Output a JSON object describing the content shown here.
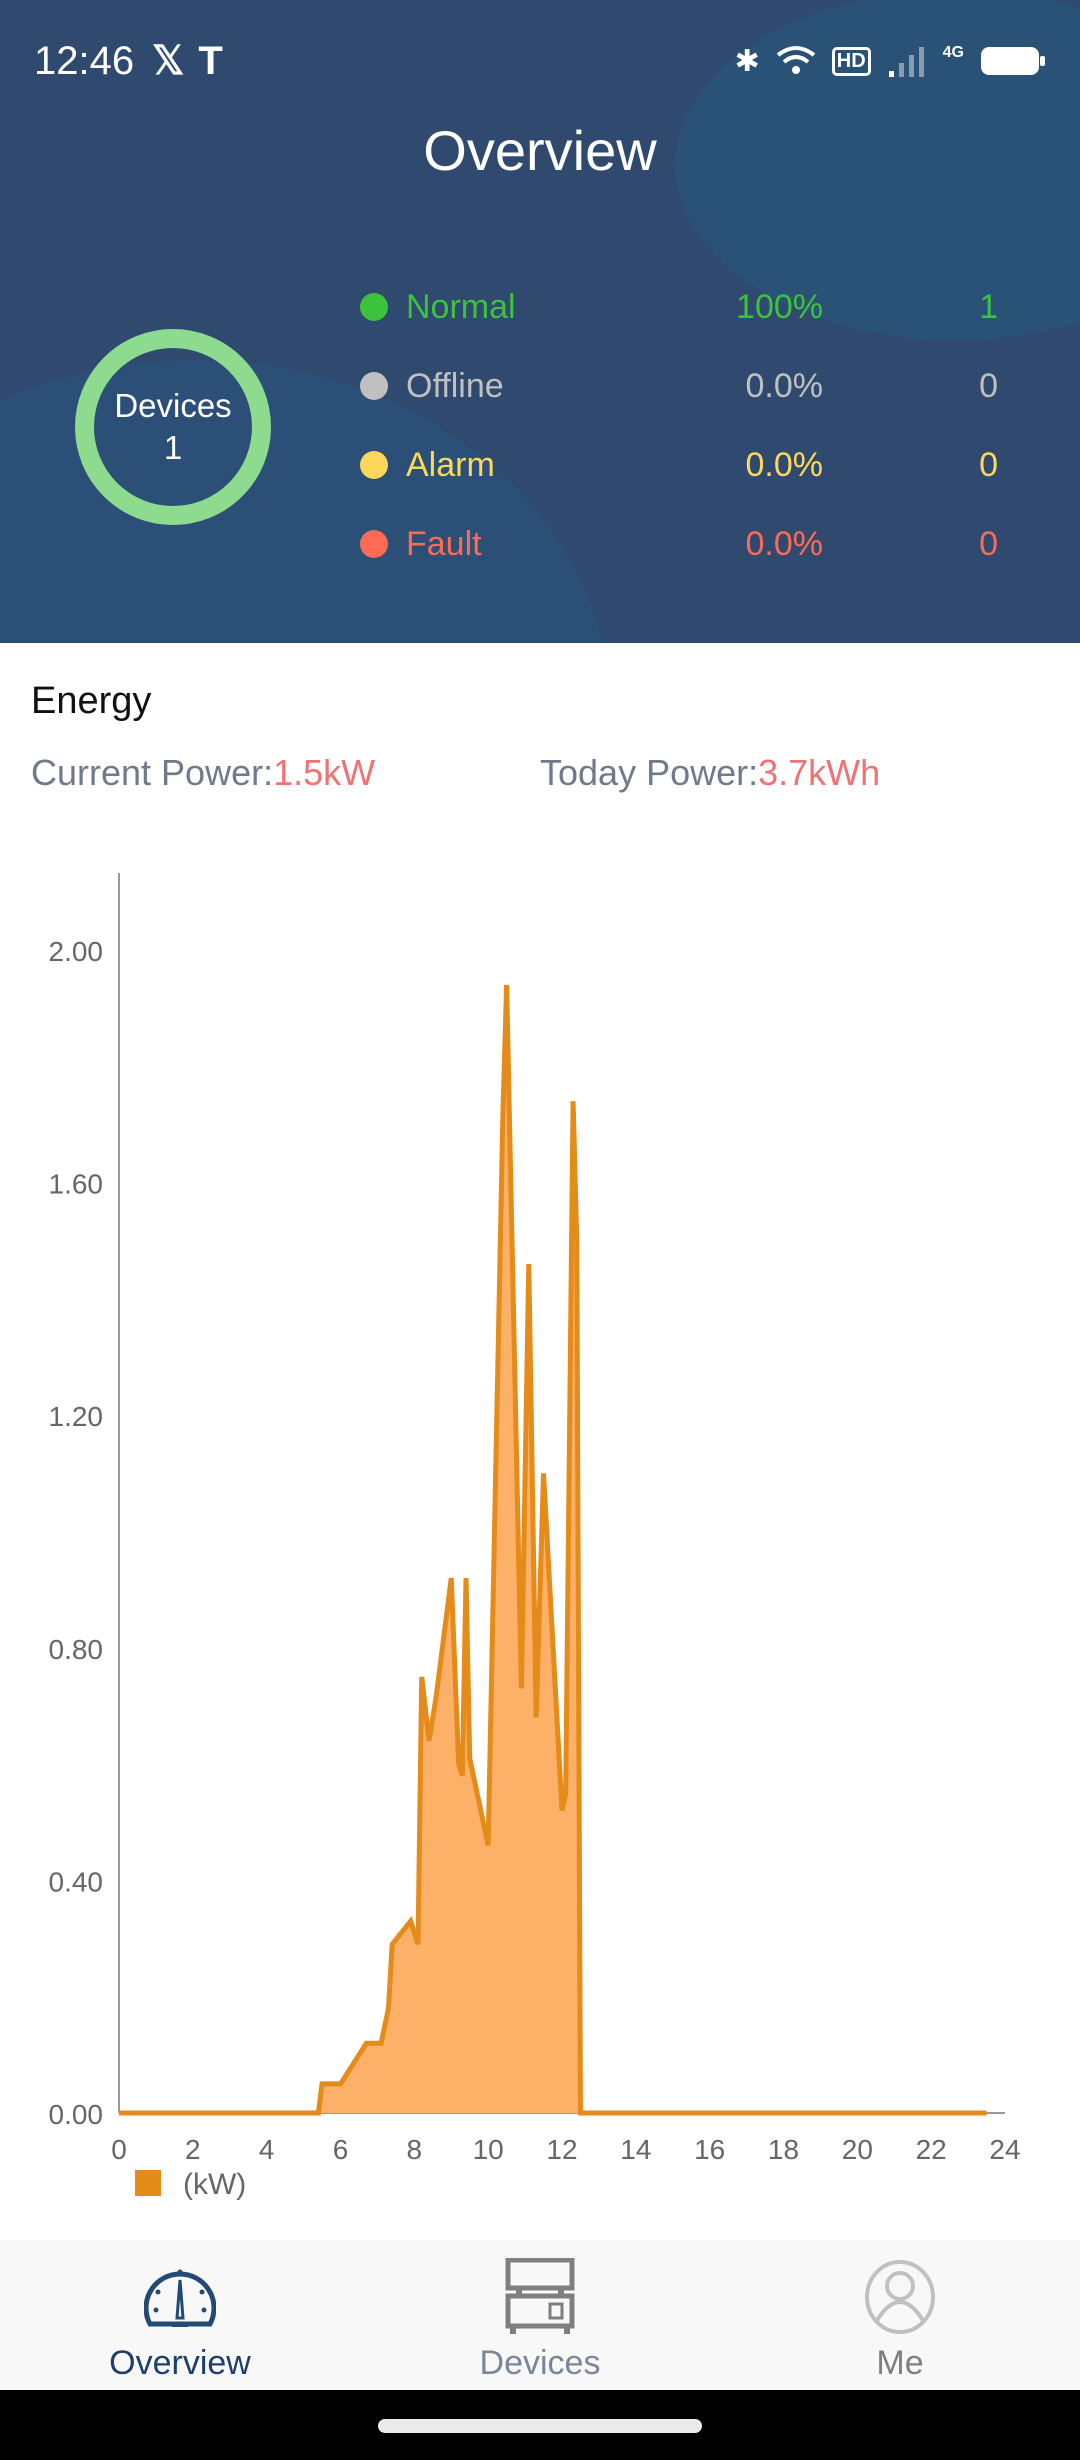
{
  "status_bar": {
    "time": "12:46",
    "network": "4G",
    "hd": "HD"
  },
  "header": {
    "title": "Overview"
  },
  "devices": {
    "label": "Devices",
    "count": "1",
    "ring_color": "#8ddb8e"
  },
  "status_rows": [
    {
      "label": "Normal",
      "percent": "100%",
      "count": "1",
      "color": "#3cc23c"
    },
    {
      "label": "Offline",
      "percent": "0.0%",
      "count": "0",
      "color": "#c0c0c0"
    },
    {
      "label": "Alarm",
      "percent": "0.0%",
      "count": "0",
      "color": "#ffd75a"
    },
    {
      "label": "Fault",
      "percent": "0.0%",
      "count": "0",
      "color": "#fd6a55"
    }
  ],
  "energy": {
    "title": "Energy",
    "current_label": "Current Power:",
    "current_value": "1.5kW",
    "today_label": "Today Power:",
    "today_value": "3.7kWh"
  },
  "chart_data": {
    "type": "area",
    "xlim": [
      0,
      24
    ],
    "ylim": [
      0,
      2.0
    ],
    "x_ticks": [
      "0",
      "2",
      "4",
      "6",
      "8",
      "10",
      "12",
      "14",
      "16",
      "18",
      "20",
      "22",
      "24"
    ],
    "y_ticks": [
      "0.00",
      "0.40",
      "0.80",
      "1.20",
      "1.60",
      "2.00"
    ],
    "legend": "(kW)",
    "legend_position": "bottom-left",
    "grid": false,
    "line_color": "#e58b1a",
    "fill_color": "#fdb068",
    "x": [
      0,
      5.4,
      5.5,
      6.0,
      6.4,
      6.7,
      7.1,
      7.3,
      7.4,
      7.9,
      8.1,
      8.2,
      8.4,
      8.6,
      9.0,
      9.2,
      9.3,
      9.4,
      9.5,
      10.0,
      10.4,
      10.5,
      10.9,
      11.1,
      11.3,
      11.5,
      12.0,
      12.1,
      12.3,
      12.4,
      12.5,
      23.5
    ],
    "y": [
      0,
      0,
      0.05,
      0.05,
      0.09,
      0.12,
      0.12,
      0.18,
      0.29,
      0.33,
      0.29,
      0.75,
      0.64,
      0.72,
      0.92,
      0.6,
      0.58,
      0.92,
      0.61,
      0.46,
      1.72,
      1.94,
      0.73,
      1.46,
      0.68,
      1.1,
      0.52,
      0.55,
      1.74,
      1.5,
      0,
      0
    ]
  },
  "nav": [
    {
      "label": "Overview",
      "icon": "dashboard-gauge-icon",
      "active": true
    },
    {
      "label": "Devices",
      "icon": "device-rack-icon"
    },
    {
      "label": "Me",
      "icon": "user-profile-icon"
    }
  ]
}
